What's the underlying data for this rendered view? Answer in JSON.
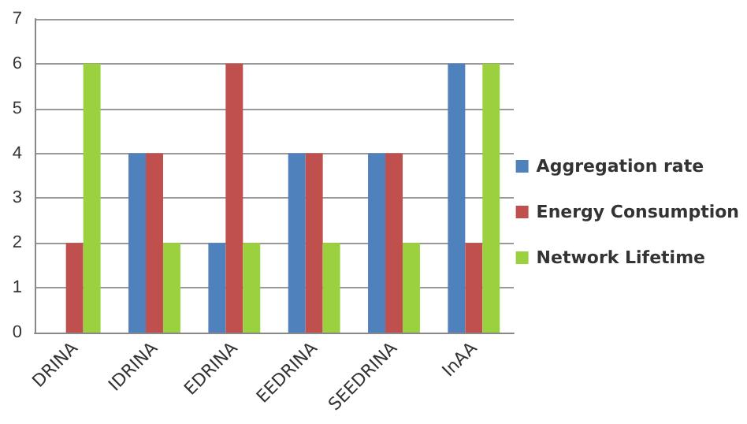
{
  "chart_data": {
    "type": "bar",
    "categories": [
      "DRINA",
      "IDRINA",
      "EDRINA",
      "EEDRINA",
      "SEEDRINA",
      "InAA"
    ],
    "series": [
      {
        "name": "Aggregation rate",
        "color": "#4f81bd",
        "values": [
          0,
          4,
          2,
          4,
          4,
          6
        ]
      },
      {
        "name": "Energy Consumption",
        "color": "#c0504d",
        "values": [
          2,
          4,
          6,
          4,
          4,
          2
        ]
      },
      {
        "name": "Network Lifetime",
        "color": "#9bd13f",
        "values": [
          6,
          2,
          2,
          2,
          2,
          6
        ]
      }
    ],
    "ylim": [
      0,
      7
    ],
    "yticks": [
      0,
      1,
      2,
      3,
      4,
      5,
      6,
      7
    ],
    "grid": "y",
    "legend": "right"
  }
}
